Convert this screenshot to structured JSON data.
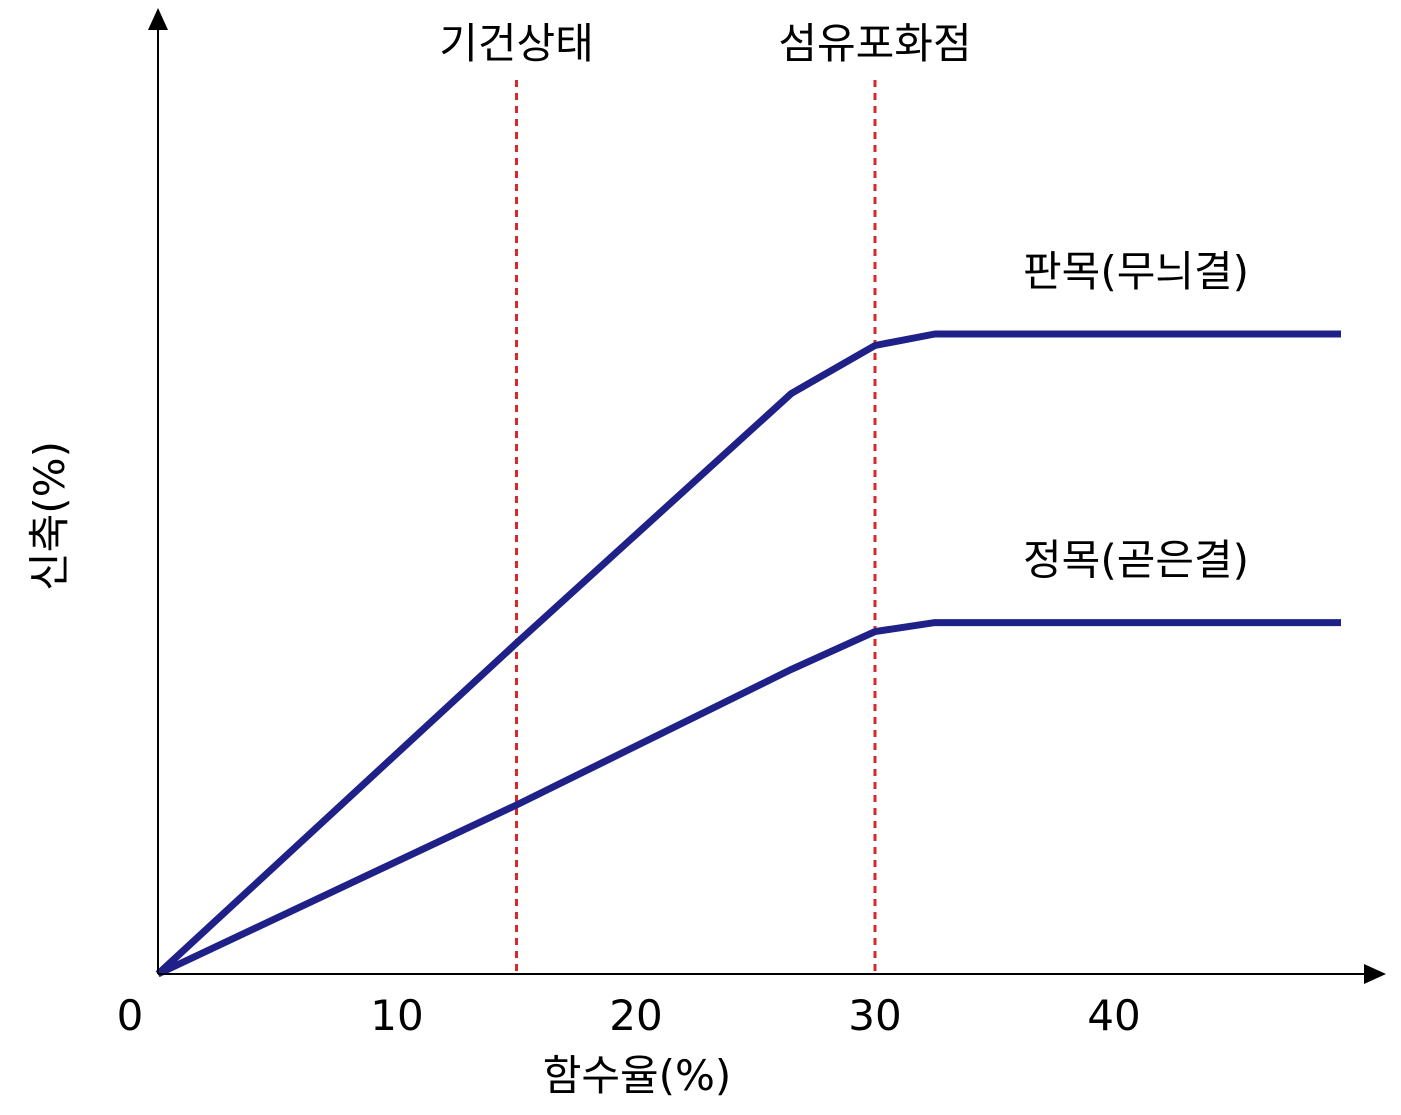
{
  "chart_data": {
    "type": "line",
    "title": "",
    "xlabel": "함수율(%)",
    "ylabel": "신축(%)",
    "xlim": [
      0,
      50
    ],
    "ylim": [
      0,
      1
    ],
    "x_ticks": [
      {
        "value": 0,
        "label": "0"
      },
      {
        "value": 10,
        "label": "10"
      },
      {
        "value": 20,
        "label": "20"
      },
      {
        "value": 30,
        "label": "30"
      },
      {
        "value": 40,
        "label": "40"
      }
    ],
    "y_ticks": [],
    "grid": false,
    "axis_color": "#000000",
    "reference_lines": [
      {
        "label": "기건상태",
        "x": 15,
        "color": "#d7282e",
        "style": "dotted"
      },
      {
        "label": "섬유포화점",
        "x": 30,
        "color": "#d7282e",
        "style": "dotted"
      }
    ],
    "series": [
      {
        "name": "판목(무늬결)",
        "color": "#1f2188",
        "points": [
          [
            0,
            0
          ],
          [
            15,
            0.517
          ],
          [
            26.5,
            0.907
          ],
          [
            30,
            0.982
          ],
          [
            32.5,
            1.0
          ],
          [
            49.5,
            1.0
          ]
        ]
      },
      {
        "name": "정목(곧은결)",
        "color": "#1f2188",
        "points": [
          [
            0,
            0
          ],
          [
            15,
            0.264
          ],
          [
            26.5,
            0.476
          ],
          [
            30,
            0.535
          ],
          [
            32.5,
            0.549
          ],
          [
            49.5,
            0.549
          ]
        ]
      }
    ]
  }
}
